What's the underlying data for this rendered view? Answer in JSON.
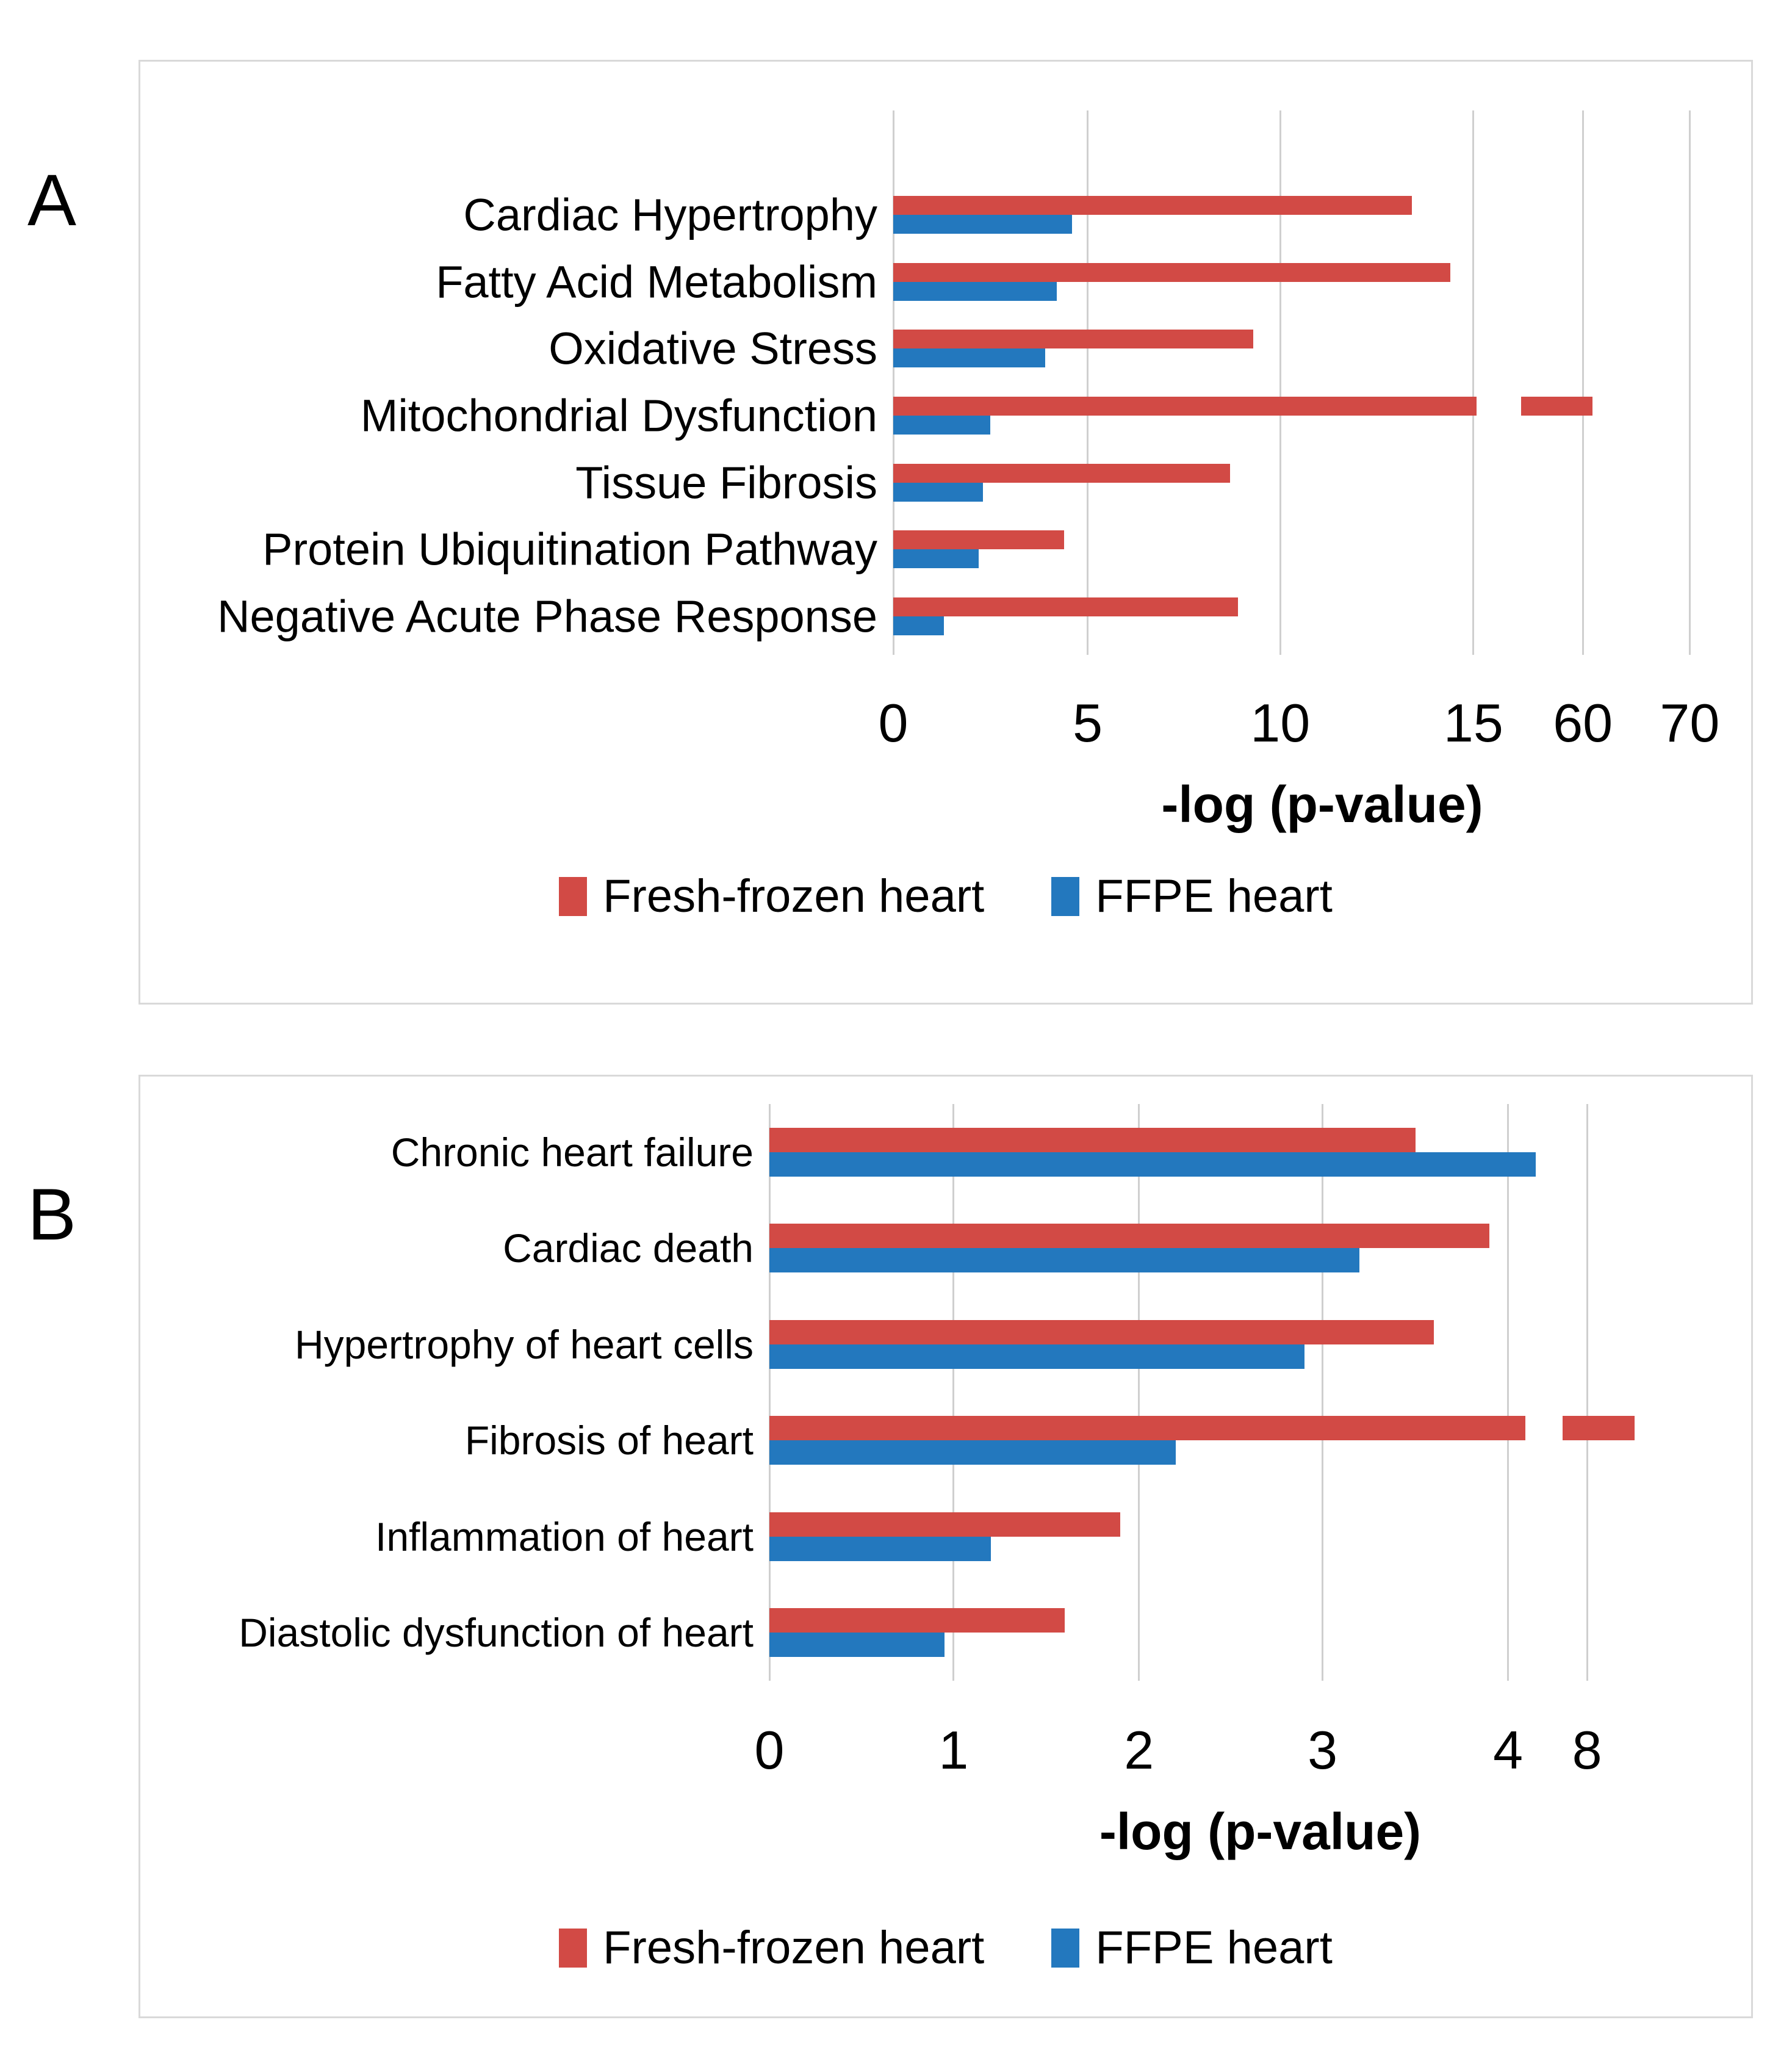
{
  "panel_labels": [
    "A",
    "B"
  ],
  "colors": {
    "fresh_frozen": "#d24a45",
    "ffpe": "#2378be",
    "gridline": "#cfcfcf",
    "panel_border": "#d9d9d9"
  },
  "chart_data": [
    {
      "type": "bar",
      "orientation": "horizontal",
      "panel": "A",
      "categories": [
        "Cardiac Hypertrophy",
        "Fatty Acid Metabolism",
        "Oxidative Stress",
        "Mitochondrial Dysfunction",
        "Tissue Fibrosis",
        "Protein Ubiquitination Pathway",
        "Negative Acute Phase Response"
      ],
      "series": [
        {
          "name": "Fresh-frozen heart",
          "color": "#d24a45",
          "values": [
            13.4,
            14.4,
            9.3,
            60.9,
            8.7,
            4.4,
            8.9
          ]
        },
        {
          "name": "FFPE heart",
          "color": "#2378be",
          "values": [
            4.6,
            4.2,
            3.9,
            2.5,
            2.3,
            2.2,
            1.3
          ]
        }
      ],
      "xlabel": "-log (p-value)",
      "x_ticks": [
        {
          "label": "0",
          "value": 0
        },
        {
          "label": "5",
          "value": 5
        },
        {
          "label": "10",
          "value": 10
        },
        {
          "label": "15",
          "value": 15
        },
        {
          "label": "60",
          "value": 60
        },
        {
          "label": "70",
          "value": 70
        }
      ],
      "axis_break": {
        "between": [
          15,
          60
        ],
        "broken_bars": [
          {
            "series": 0,
            "category_index": 3,
            "gap_frac": [
              0.68,
              0.732
            ]
          }
        ]
      },
      "scale_stops": {
        "values": [
          0,
          5,
          10,
          15,
          60,
          70,
          76
        ],
        "fracs": [
          0,
          0.2266,
          0.4511,
          0.6763,
          0.8038,
          0.9284,
          1.0
        ]
      },
      "grid": true,
      "legend_position": "bottom"
    },
    {
      "type": "bar",
      "orientation": "horizontal",
      "panel": "B",
      "categories": [
        "Chronic heart failure",
        "Cardiac death",
        "Hypertrophy of heart cells",
        "Fibrosis of heart",
        "Inflammation of heart",
        "Diastolic dysfunction of heart"
      ],
      "series": [
        {
          "name": "Fresh-frozen heart",
          "color": "#d24a45",
          "values": [
            3.5,
            3.9,
            3.6,
            10.4,
            1.9,
            1.6
          ]
        },
        {
          "name": "FFPE heart",
          "color": "#2378be",
          "values": [
            5.4,
            3.2,
            2.9,
            2.2,
            1.2,
            0.95
          ]
        }
      ],
      "xlabel": "-log (p-value)",
      "x_ticks": [
        {
          "label": "0",
          "value": 0
        },
        {
          "label": "1",
          "value": 1
        },
        {
          "label": "2",
          "value": 2
        },
        {
          "label": "3",
          "value": 3
        },
        {
          "label": "4",
          "value": 4
        },
        {
          "label": "8",
          "value": 8
        }
      ],
      "axis_break": {
        "between": [
          4,
          8
        ],
        "broken_bars": [
          {
            "series": 0,
            "category_index": 3,
            "gap_frac": [
              0.77,
              0.808
            ]
          }
        ]
      },
      "scale_stops": {
        "values": [
          0,
          1,
          2,
          3,
          4,
          8,
          16.3
        ],
        "fracs": [
          0,
          0.1876,
          0.3765,
          0.5635,
          0.7524,
          0.8329,
          1.0
        ]
      },
      "grid": true,
      "legend_position": "bottom"
    }
  ]
}
